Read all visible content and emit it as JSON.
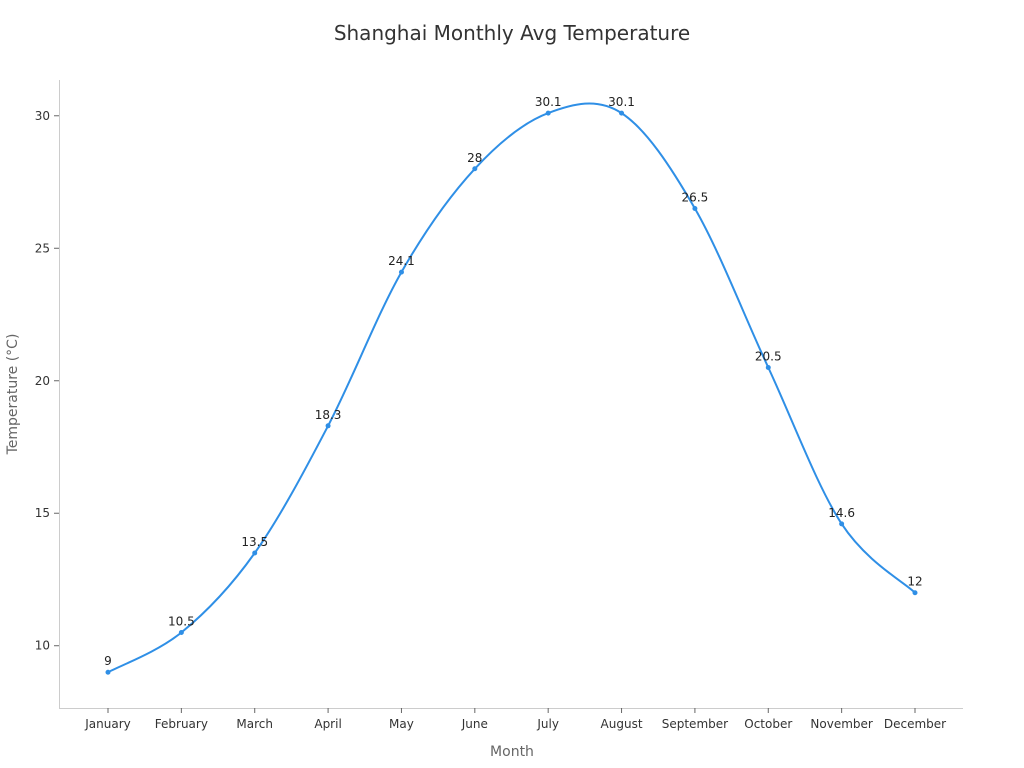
{
  "chart_data": {
    "type": "line",
    "title": "Shanghai Monthly Avg Temperature",
    "xlabel": "Month",
    "ylabel": "Temperature (°C)",
    "categories": [
      "January",
      "February",
      "March",
      "April",
      "May",
      "June",
      "July",
      "August",
      "September",
      "October",
      "November",
      "December"
    ],
    "values": [
      9,
      10.5,
      13.5,
      18.3,
      24.1,
      28,
      30.1,
      30.1,
      26.5,
      20.5,
      14.6,
      12
    ],
    "data_labels": [
      "9",
      "10.5",
      "13.5",
      "18.3",
      "24.1",
      "28",
      "30.1",
      "30.1",
      "26.5",
      "20.5",
      "14.6",
      "12"
    ],
    "yticks": [
      10,
      15,
      20,
      25,
      30
    ],
    "ylim": [
      7.65,
      31.35
    ],
    "grid": false,
    "smooth": true,
    "color": "#2f8fe6"
  }
}
